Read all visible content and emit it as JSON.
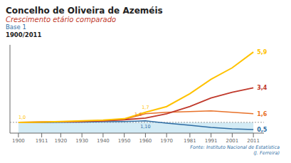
{
  "chart_data": {
    "type": "line",
    "title": "Concelho de Oliveira de Azeméis",
    "subtitle": [
      "Crescimento etário comparado",
      "Base 1",
      "1900/2011"
    ],
    "annotations": [
      "Fonte: Instituto Nacional de Estatística",
      "(J. Ferreira)"
    ],
    "x": [
      1900,
      1911,
      1920,
      1930,
      1940,
      1950,
      1960,
      1970,
      1981,
      1991,
      2001,
      2011
    ],
    "xlim": [
      1896,
      2016
    ],
    "xticks": [
      1900,
      1911,
      1920,
      1930,
      1940,
      1950,
      1960,
      1970,
      1981,
      1991,
      2001,
      2011
    ],
    "ylim": [
      0.25,
      6.4
    ],
    "yticks": [],
    "tick_labels": "x",
    "grid": false,
    "baseline": 1,
    "series": [
      {
        "color": "#2E6DA4",
        "values": [
          1.0,
          1.0,
          1.01,
          1.02,
          1.04,
          1.06,
          1.1,
          0.95,
          0.8,
          0.65,
          0.55,
          0.5
        ],
        "value_labels": [
          null,
          null,
          null,
          null,
          null,
          null,
          "1,10",
          null,
          null,
          null,
          null,
          "0,5"
        ]
      },
      {
        "color": "#E8722A",
        "values": [
          1.0,
          1.02,
          1.04,
          1.07,
          1.12,
          1.2,
          1.6,
          1.7,
          1.75,
          1.8,
          1.7,
          1.6
        ],
        "value_labels": [
          null,
          null,
          null,
          null,
          null,
          null,
          "1,6",
          null,
          null,
          null,
          null,
          "1,6"
        ]
      },
      {
        "color": "#C0392B",
        "values": [
          1.0,
          1.02,
          1.04,
          1.06,
          1.1,
          1.18,
          1.3,
          1.6,
          2.1,
          2.7,
          3.1,
          3.4
        ],
        "value_labels": [
          null,
          null,
          null,
          null,
          null,
          null,
          null,
          null,
          null,
          null,
          null,
          "3,4"
        ]
      },
      {
        "color": "#FFC200",
        "values": [
          1.0,
          1.02,
          1.05,
          1.1,
          1.15,
          1.25,
          1.7,
          2.1,
          3.0,
          4.0,
          4.8,
          5.9
        ],
        "value_labels": [
          "1,0",
          null,
          null,
          null,
          null,
          null,
          "1,7",
          null,
          null,
          null,
          null,
          "5,9"
        ]
      }
    ]
  }
}
